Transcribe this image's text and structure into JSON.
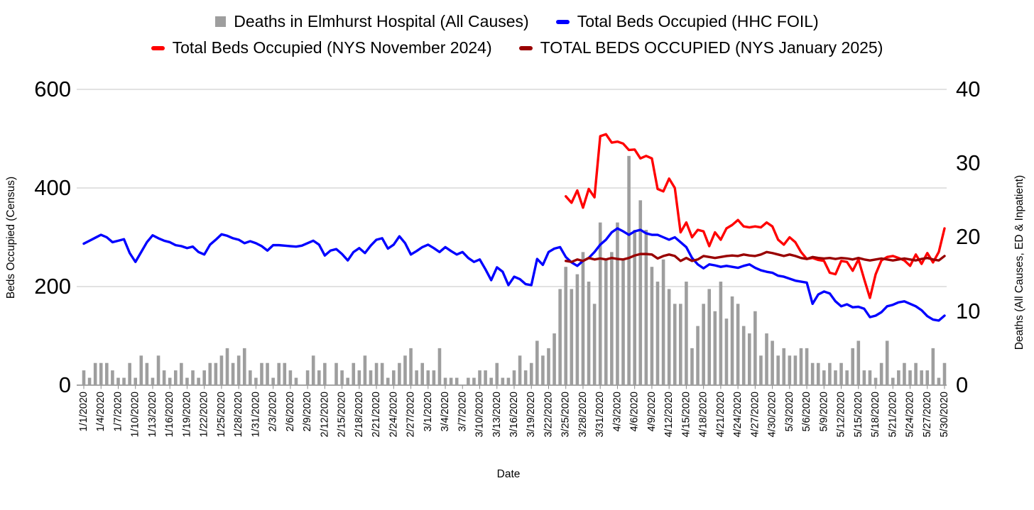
{
  "page": {
    "background": "#ffffff"
  },
  "legend": {
    "items": [
      {
        "label": "Deaths in Elmhurst Hospital (All Causes)",
        "marker": "square",
        "color": "#9e9e9e"
      },
      {
        "label": "Total Beds Occupied (HHC FOIL)",
        "marker": "dash",
        "color": "#0000ff"
      },
      {
        "label": "Total Beds Occupied (NYS November 2024)",
        "marker": "dash",
        "color": "#ff0000"
      },
      {
        "label": "TOTAL BEDS OCCUPIED (NYS January 2025)",
        "marker": "dash",
        "color": "#990000"
      }
    ]
  },
  "chart_data": {
    "type": "combo bar+line, dual axis",
    "x_axis": {
      "title": "Date",
      "label_step_days": 3
    },
    "left_axis": {
      "title": "Beds Occupied (Census)",
      "range": [
        0,
        600
      ],
      "tick_labels": [
        "600",
        "400",
        "200",
        "0"
      ],
      "grid": true
    },
    "right_axis": {
      "title": "Deaths (All Causes, ED & Inpatient)",
      "range": [
        0,
        40
      ],
      "tick_labels": [
        "40",
        "30",
        "20",
        "10",
        "0"
      ],
      "grid": false
    },
    "x_labels": [
      "1/1/2020",
      "1/4/2020",
      "1/7/2020",
      "1/10/2020",
      "1/13/2020",
      "1/16/2020",
      "1/19/2020",
      "1/22/2020",
      "1/25/2020",
      "1/28/2020",
      "1/31/2020",
      "2/3/2020",
      "2/6/2020",
      "2/9/2020",
      "2/12/2020",
      "2/15/2020",
      "2/18/2020",
      "2/21/2020",
      "2/24/2020",
      "2/27/2020",
      "3/1/2020",
      "3/4/2020",
      "3/7/2020",
      "3/10/2020",
      "3/13/2020",
      "3/16/2020",
      "3/19/2020",
      "3/22/2020",
      "3/25/2020",
      "3/28/2020",
      "3/31/2020",
      "4/3/2020",
      "4/6/2020",
      "4/9/2020",
      "4/12/2020",
      "4/15/2020",
      "4/18/2020",
      "4/21/2020",
      "4/24/2020",
      "4/27/2020",
      "4/30/2020",
      "5/3/2020",
      "5/6/2020",
      "5/9/2020",
      "5/12/2020",
      "5/15/2020",
      "5/18/2020",
      "5/21/2020",
      "5/24/2020",
      "5/27/2020",
      "5/30/2020"
    ],
    "series": [
      {
        "name": "Deaths in Elmhurst Hospital (All Causes)",
        "type": "bar",
        "axis": "right",
        "color": "#9e9e9e",
        "start_index": 0,
        "values": [
          2,
          1,
          3,
          3,
          3,
          2,
          1,
          1,
          3,
          1,
          4,
          3,
          1,
          4,
          2,
          1,
          2,
          3,
          1,
          2,
          1,
          2,
          3,
          3,
          4,
          5,
          3,
          4,
          5,
          2,
          1,
          3,
          3,
          1,
          3,
          3,
          2,
          1,
          0,
          2,
          4,
          2,
          3,
          0,
          3,
          2,
          1,
          3,
          2,
          4,
          2,
          3,
          3,
          1,
          2,
          3,
          4,
          5,
          2,
          3,
          2,
          2,
          5,
          1,
          1,
          1,
          0,
          1,
          1,
          2,
          2,
          1,
          3,
          1,
          1,
          2,
          4,
          2,
          3,
          6,
          4,
          5,
          7,
          13,
          16,
          13,
          15,
          18,
          14,
          11,
          22,
          17,
          18,
          22,
          17,
          31,
          21,
          25,
          21,
          16,
          14,
          17,
          13,
          11,
          11,
          14,
          5,
          8,
          11,
          13,
          10,
          14,
          9,
          12,
          11,
          8,
          7,
          10,
          4,
          7,
          6,
          4,
          5,
          4,
          4,
          5,
          5,
          3,
          3,
          2,
          3,
          2,
          3,
          2,
          5,
          6,
          2,
          2,
          1,
          3,
          6,
          1,
          2,
          3,
          2,
          3,
          2,
          2,
          5,
          1,
          3
        ]
      },
      {
        "name": "Total Beds Occupied (HHC FOIL)",
        "type": "line",
        "axis": "left",
        "color": "#0000ff",
        "start_index": 0,
        "values": [
          287,
          293,
          299,
          305,
          300,
          290,
          293,
          296,
          268,
          250,
          270,
          290,
          304,
          298,
          293,
          290,
          284,
          282,
          278,
          281,
          270,
          265,
          285,
          295,
          306,
          303,
          298,
          295,
          288,
          292,
          288,
          282,
          273,
          284,
          284,
          283,
          282,
          281,
          283,
          288,
          293,
          285,
          263,
          273,
          276,
          266,
          253,
          270,
          278,
          268,
          283,
          295,
          298,
          277,
          285,
          302,
          288,
          265,
          272,
          280,
          285,
          278,
          270,
          280,
          272,
          265,
          270,
          258,
          250,
          255,
          235,
          213,
          239,
          230,
          203,
          220,
          215,
          205,
          203,
          256,
          244,
          270,
          277,
          280,
          260,
          249,
          242,
          252,
          258,
          270,
          285,
          295,
          310,
          318,
          312,
          305,
          312,
          315,
          308,
          305,
          305,
          300,
          295,
          300,
          290,
          280,
          258,
          245,
          237,
          245,
          243,
          240,
          242,
          240,
          238,
          242,
          245,
          238,
          233,
          230,
          228,
          222,
          220,
          216,
          212,
          210,
          208,
          165,
          184,
          190,
          186,
          170,
          160,
          164,
          158,
          159,
          155,
          138,
          141,
          148,
          160,
          163,
          168,
          170,
          165,
          160,
          152,
          140,
          133,
          131,
          141
        ]
      },
      {
        "name": "Total Beds Occupied (NYS November 2024)",
        "type": "line",
        "axis": "left",
        "color": "#ff0000",
        "start_index": 84,
        "values": [
          383,
          370,
          395,
          360,
          398,
          381,
          505,
          509,
          492,
          494,
          490,
          477,
          478,
          460,
          465,
          460,
          398,
          393,
          419,
          400,
          310,
          330,
          300,
          315,
          312,
          282,
          310,
          295,
          318,
          325,
          335,
          322,
          320,
          322,
          320,
          330,
          322,
          295,
          285,
          300,
          290,
          270,
          256,
          258,
          254,
          252,
          228,
          225,
          252,
          250,
          232,
          255,
          215,
          177,
          225,
          253,
          260,
          262,
          258,
          253,
          242,
          265,
          246,
          268,
          249,
          270,
          318
        ]
      },
      {
        "name": "TOTAL BEDS OCCUPIED (NYS January 2025)",
        "type": "line",
        "axis": "left",
        "color": "#990000",
        "start_index": 84,
        "values": [
          252,
          250,
          255,
          252,
          258,
          255,
          257,
          255,
          258,
          256,
          255,
          258,
          263,
          266,
          266,
          265,
          257,
          262,
          265,
          262,
          252,
          258,
          252,
          255,
          262,
          260,
          258,
          260,
          262,
          263,
          262,
          265,
          263,
          262,
          265,
          270,
          268,
          265,
          262,
          265,
          262,
          258,
          256,
          260,
          258,
          257,
          258,
          256,
          258,
          257,
          255,
          258,
          255,
          253,
          255,
          257,
          255,
          253,
          255,
          257,
          255,
          253,
          256,
          258,
          255,
          253,
          262
        ]
      }
    ]
  }
}
